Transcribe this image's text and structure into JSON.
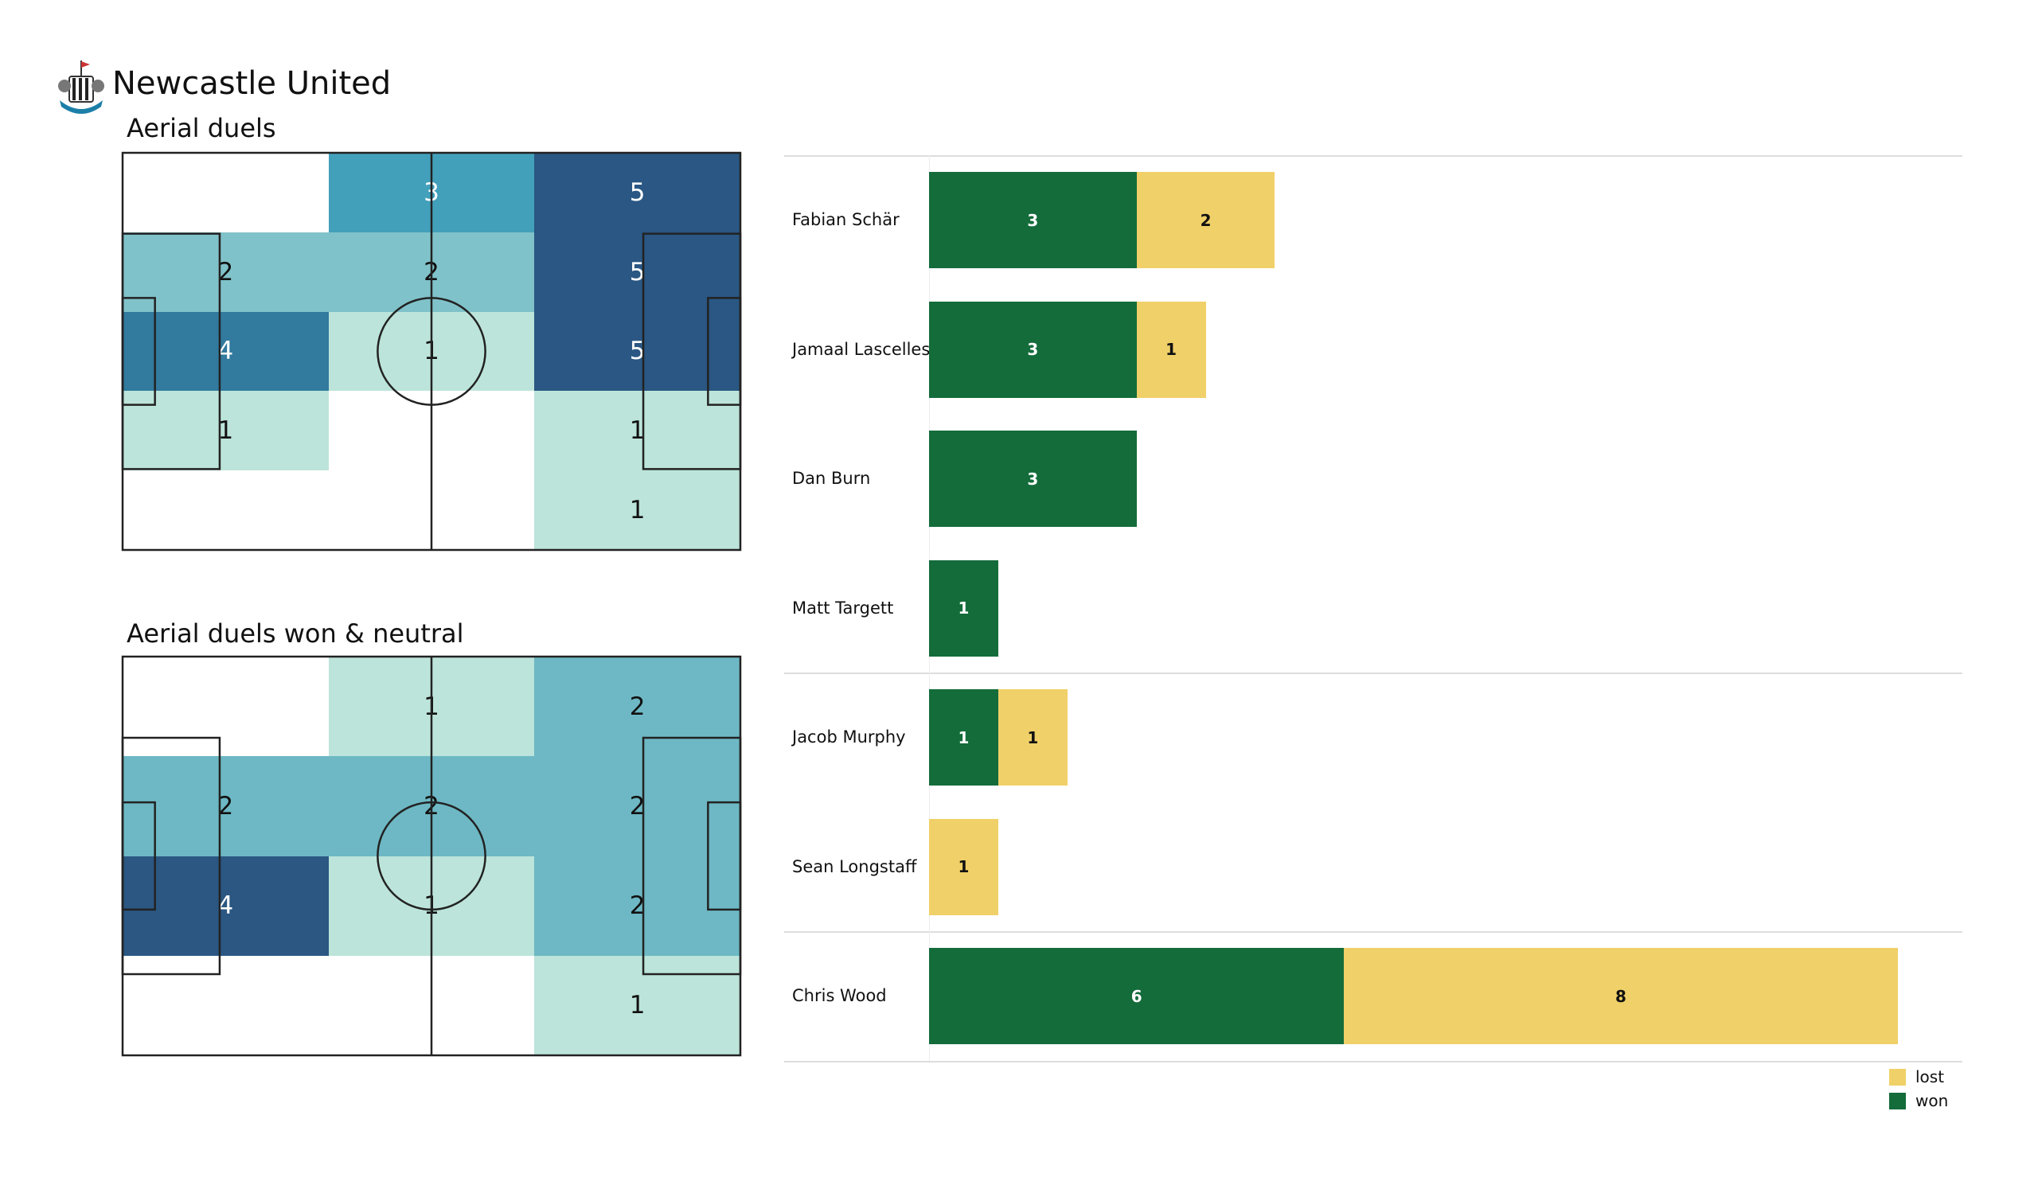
{
  "header": {
    "team": "Newcastle United",
    "logo_icon": "newcastle-crest"
  },
  "chart_data": [
    {
      "type": "heatmap",
      "title": "Aerial duels",
      "rows": 5,
      "cols": 3,
      "values": [
        [
          0,
          3,
          5
        ],
        [
          2,
          2,
          5
        ],
        [
          4,
          1,
          5
        ],
        [
          1,
          0,
          1
        ],
        [
          0,
          0,
          1
        ]
      ],
      "colors": {
        "1": "#bce4da",
        "2": "#80c2c9",
        "3": "#43a0bb",
        "4": "#327a9e",
        "5": "#2a5783"
      }
    },
    {
      "type": "heatmap",
      "title": "Aerial duels won & neutral",
      "rows": 4,
      "cols": 3,
      "values": [
        [
          0,
          1,
          2
        ],
        [
          2,
          2,
          2
        ],
        [
          4,
          1,
          2
        ],
        [
          0,
          0,
          1
        ]
      ],
      "colors": {
        "1": "#bce4da",
        "2": "#6db8c4",
        "4": "#2b5782"
      }
    },
    {
      "type": "bar",
      "orientation": "horizontal-stacked",
      "categories": [
        "Fabian Schär",
        "Jamaal Lascelles",
        "Dan Burn",
        "Matt Targett",
        "Jacob Murphy",
        "Sean Longstaff",
        "Chris Wood"
      ],
      "groups_separators_after": [
        3,
        5
      ],
      "series": [
        {
          "name": "won",
          "color": "#136c3a",
          "values": [
            3,
            3,
            3,
            1,
            1,
            0,
            6
          ]
        },
        {
          "name": "lost",
          "color": "#f0d068",
          "values": [
            2,
            1,
            0,
            0,
            1,
            1,
            8
          ]
        }
      ],
      "legend": {
        "position": "bottom-right",
        "entries": [
          "lost",
          "won"
        ]
      }
    }
  ]
}
